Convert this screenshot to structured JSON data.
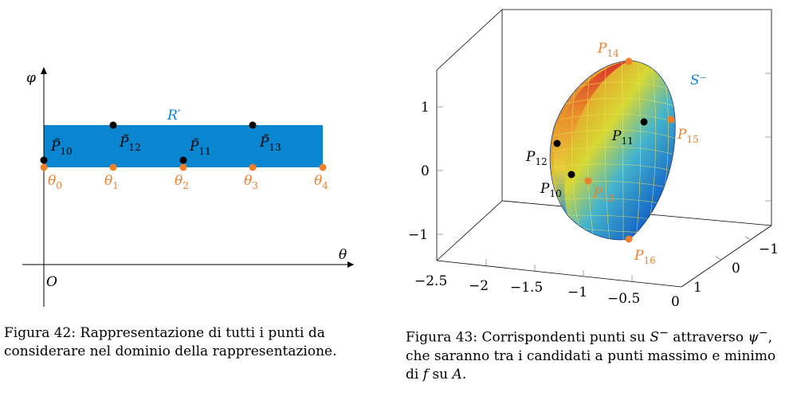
{
  "left_figure": {
    "axis_x_label": "θ",
    "axis_y_label": "φ",
    "origin_label": "O",
    "region_label": "R′",
    "theta_labels": [
      {
        "base": "θ",
        "sub": "0"
      },
      {
        "base": "θ",
        "sub": "1"
      },
      {
        "base": "θ",
        "sub": "2"
      },
      {
        "base": "θ",
        "sub": "3"
      },
      {
        "base": "θ",
        "sub": "4"
      }
    ],
    "points": [
      {
        "base": "P̃",
        "sub": "10"
      },
      {
        "base": "P̃",
        "sub": "12"
      },
      {
        "base": "P̃",
        "sub": "11"
      },
      {
        "base": "P̃",
        "sub": "13"
      }
    ],
    "colors": {
      "region": "#0a85cf",
      "orange": "#f07f2a",
      "black": "#000000"
    }
  },
  "right_figure": {
    "surface_label": "S⁻",
    "z_ticks": [
      "1",
      "0",
      "−1"
    ],
    "x_ticks": [
      "−2.5",
      "−2",
      "−1.5",
      "−1",
      "−0.5",
      "0"
    ],
    "y_ticks": [
      "1",
      "0",
      "−1"
    ],
    "points_black": [
      {
        "base": "P",
        "sub": "11"
      },
      {
        "base": "P",
        "sub": "12"
      },
      {
        "base": "P",
        "sub": "10"
      }
    ],
    "points_orange": [
      {
        "base": "P",
        "sub": "14"
      },
      {
        "base": "P",
        "sub": "15"
      },
      {
        "base": "P",
        "sub": "13"
      },
      {
        "base": "P",
        "sub": "16"
      }
    ]
  },
  "captions": {
    "left": {
      "prefix": "Figura 42:",
      "text": "Rappresentazione di tutti i punti da considerare nel dominio della rappresentazione."
    },
    "right": {
      "prefix": "Figura 43:",
      "part1": "Corrispondenti punti su",
      "sym_S": "S",
      "sym_S_sup": "−",
      "part2": "attraverso",
      "sym_psi": "ψ",
      "sym_psi_sup": "−",
      "part3": ", che saranno tra i candidati a punti massimo e minimo di",
      "sym_f": "f",
      "part4": "su",
      "sym_A": "A",
      "part5": "."
    }
  }
}
